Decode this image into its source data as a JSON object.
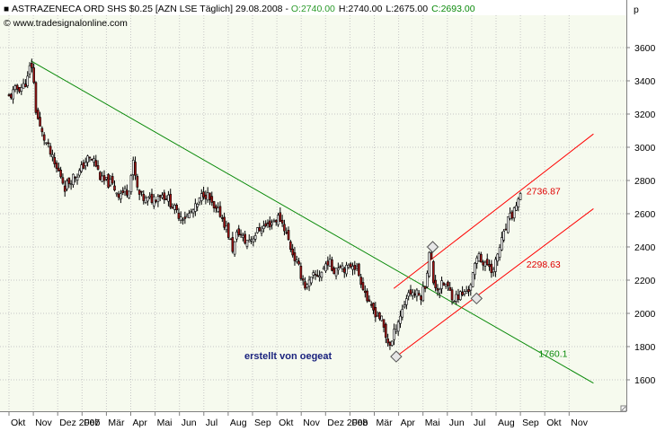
{
  "header": {
    "bullet": "■",
    "title": "ASTRAZENECA ORD SHS $0.25 [AZN LSE  Täglich] 29.08.2008 - ",
    "open": "O:2740.00",
    "high": "H:2740.00",
    "low": "L:2675.00",
    "close": "C:2693.00",
    "copyright": "© www.tradesignalonline.com",
    "unit": "p"
  },
  "annotation": "erstellt von oegeat",
  "colors": {
    "background": "#f6faee",
    "grid": "#c7c7c7",
    "trend_line": "#0a8a0a",
    "channel": "#ff0000",
    "up_candle": "#ffffff",
    "down_candle": "#a31515",
    "wick": "#000000",
    "open_text": "#2a9a2a",
    "close_text": "#0a8a0a",
    "annotation": "#1a237e"
  },
  "chart_data": {
    "type": "line",
    "title": "ASTRAZENECA ORD SHS $0.25 [AZN LSE  Täglich] 29.08.2008",
    "ylabel": "p",
    "ylim": [
      1520,
      3720
    ],
    "yticks": [
      1600,
      1800,
      2000,
      2200,
      2400,
      2600,
      2800,
      3000,
      3200,
      3400,
      3600
    ],
    "xlim": [
      0,
      24
    ],
    "x_ticks": [
      {
        "x": 0.0,
        "label": "Okt"
      },
      {
        "x": 1.0,
        "label": "Nov"
      },
      {
        "x": 2.0,
        "label": "Dez 2007"
      },
      {
        "x": 3.0,
        "label": "Feb"
      },
      {
        "x": 4.0,
        "label": "Mär"
      },
      {
        "x": 5.0,
        "label": "Apr"
      },
      {
        "x": 6.0,
        "label": "Mai"
      },
      {
        "x": 7.0,
        "label": "Jun"
      },
      {
        "x": 8.0,
        "label": "Jul"
      },
      {
        "x": 9.0,
        "label": "Aug"
      },
      {
        "x": 10.0,
        "label": "Sep"
      },
      {
        "x": 11.0,
        "label": "Okt"
      },
      {
        "x": 12.0,
        "label": "Nov"
      },
      {
        "x": 13.0,
        "label": "Dez 2008"
      },
      {
        "x": 14.0,
        "label": "Feb"
      },
      {
        "x": 15.0,
        "label": "Mär"
      },
      {
        "x": 16.0,
        "label": "Apr"
      },
      {
        "x": 17.0,
        "label": "Mai"
      },
      {
        "x": 18.0,
        "label": "Jun"
      },
      {
        "x": 19.0,
        "label": "Jul"
      },
      {
        "x": 20.0,
        "label": "Aug"
      },
      {
        "x": 21.0,
        "label": "Sep"
      },
      {
        "x": 22.0,
        "label": "Okt"
      },
      {
        "x": 23.0,
        "label": "Nov"
      }
    ],
    "series": [
      {
        "values": [
          [
            0.0,
            3300
          ],
          [
            0.3,
            3350
          ],
          [
            0.6,
            3370
          ],
          [
            0.8,
            3420
          ],
          [
            0.9,
            3530
          ],
          [
            1.0,
            3420
          ],
          [
            1.1,
            3230
          ],
          [
            1.3,
            3100
          ],
          [
            1.6,
            3000
          ],
          [
            1.9,
            2880
          ],
          [
            2.1,
            2840
          ],
          [
            2.3,
            2760
          ],
          [
            2.6,
            2820
          ],
          [
            2.9,
            2850
          ],
          [
            3.2,
            2930
          ],
          [
            3.5,
            2920
          ],
          [
            3.8,
            2800
          ],
          [
            4.2,
            2780
          ],
          [
            4.5,
            2720
          ],
          [
            4.9,
            2740
          ],
          [
            5.1,
            2900
          ],
          [
            5.3,
            2720
          ],
          [
            5.6,
            2680
          ],
          [
            5.9,
            2690
          ],
          [
            6.2,
            2720
          ],
          [
            6.5,
            2700
          ],
          [
            6.9,
            2600
          ],
          [
            7.3,
            2580
          ],
          [
            7.7,
            2640
          ],
          [
            8.0,
            2730
          ],
          [
            8.2,
            2700
          ],
          [
            8.4,
            2620
          ],
          [
            8.7,
            2600
          ],
          [
            9.0,
            2480
          ],
          [
            9.2,
            2380
          ],
          [
            9.4,
            2500
          ],
          [
            9.7,
            2430
          ],
          [
            10.0,
            2460
          ],
          [
            10.3,
            2510
          ],
          [
            10.6,
            2530
          ],
          [
            10.9,
            2560
          ],
          [
            11.1,
            2580
          ],
          [
            11.3,
            2520
          ],
          [
            11.6,
            2380
          ],
          [
            11.9,
            2270
          ],
          [
            12.2,
            2150
          ],
          [
            12.5,
            2220
          ],
          [
            12.8,
            2240
          ],
          [
            13.1,
            2320
          ],
          [
            13.3,
            2260
          ],
          [
            13.6,
            2300
          ],
          [
            13.9,
            2260
          ],
          [
            14.1,
            2310
          ],
          [
            14.3,
            2260
          ],
          [
            14.6,
            2140
          ],
          [
            14.8,
            2040
          ],
          [
            15.1,
            2000
          ],
          [
            15.3,
            1960
          ],
          [
            15.5,
            1840
          ],
          [
            15.7,
            1810
          ],
          [
            15.9,
            1930
          ],
          [
            16.1,
            2000
          ],
          [
            16.4,
            2130
          ],
          [
            16.7,
            2120
          ],
          [
            16.9,
            2100
          ],
          [
            17.1,
            2180
          ],
          [
            17.3,
            2400
          ],
          [
            17.4,
            2200
          ],
          [
            17.6,
            2150
          ],
          [
            17.9,
            2180
          ],
          [
            18.1,
            2130
          ],
          [
            18.3,
            2090
          ],
          [
            18.5,
            2110
          ],
          [
            18.7,
            2120
          ],
          [
            18.9,
            2150
          ],
          [
            19.1,
            2260
          ],
          [
            19.3,
            2370
          ],
          [
            19.5,
            2280
          ],
          [
            19.7,
            2300
          ],
          [
            19.9,
            2250
          ],
          [
            20.1,
            2380
          ],
          [
            20.3,
            2460
          ],
          [
            20.5,
            2560
          ],
          [
            20.7,
            2600
          ],
          [
            20.9,
            2690
          ],
          [
            21.0,
            2693
          ]
        ]
      }
    ],
    "lines": [
      {
        "name": "trend",
        "from": [
          0.9,
          3520
        ],
        "to": [
          24.0,
          1580
        ]
      },
      {
        "name": "channel-upper",
        "from": [
          15.8,
          2150
        ],
        "to": [
          24.0,
          3080
        ]
      },
      {
        "name": "channel-lower",
        "from": [
          15.9,
          1740
        ],
        "to": [
          24.0,
          2630
        ]
      }
    ],
    "pivots": [
      [
        15.9,
        1740
      ],
      [
        17.4,
        2400
      ],
      [
        19.2,
        2090
      ]
    ],
    "annotations": [
      {
        "text": "2736.87",
        "x": 21.1,
        "y": 2736.87,
        "color": "red"
      },
      {
        "text": "2298.63",
        "x": 21.1,
        "y": 2298.63,
        "color": "red"
      },
      {
        "text": "1760.1",
        "x": 21.6,
        "y": 1760.1,
        "color": "green"
      }
    ]
  }
}
